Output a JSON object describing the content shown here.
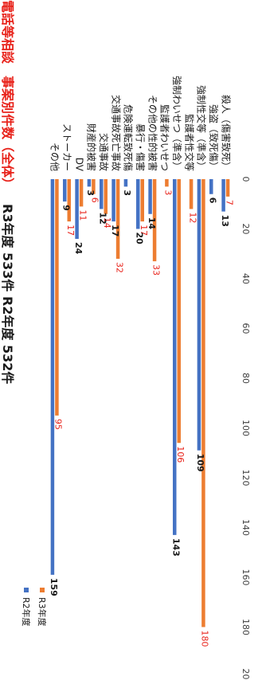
{
  "chart_data": {
    "type": "bar",
    "orientation": "horizontal",
    "title_parts": [
      {
        "text": "電話等相談",
        "color": "#e8231b"
      },
      {
        "text": "事案別件数（全体）",
        "color": "#e8231b"
      },
      {
        "text": "R3年度 533件  R2年度 532件",
        "color": "#1a1a1a"
      }
    ],
    "categories": [
      "殺人（傷害致死）",
      "強盗（致死傷）",
      "強制性交等（準含）",
      "監護者性交等",
      "強制わいせつ（準含）",
      "監護者わいせつ",
      "その他の性的被害",
      "暴行・傷害",
      "危険運転致死傷",
      "交通事故死亡事故",
      "交通事故",
      "財産的被害",
      "DV",
      "ストーカー",
      "その他"
    ],
    "series": [
      {
        "name": "R3年度",
        "color": "#ed7d31",
        "label_color": "#e8231b",
        "values": [
          7,
          0,
          180,
          12,
          106,
          3,
          33,
          17,
          0,
          32,
          14,
          6,
          11,
          17,
          95
        ],
        "labels": [
          "7",
          "",
          "180",
          "12",
          "106",
          "3",
          "33",
          "17",
          "",
          "32",
          "14",
          "6",
          "11",
          "17",
          "95"
        ]
      },
      {
        "name": "R2年度",
        "color": "#4472c4",
        "label_color": "#1a1a1a",
        "values": [
          13,
          6,
          109,
          0,
          143,
          0,
          14,
          20,
          3,
          17,
          12,
          3,
          24,
          9,
          159
        ],
        "labels": [
          "13",
          "6",
          "109",
          "",
          "143",
          "",
          "14",
          "20",
          "3",
          "17",
          "12",
          "3",
          "24",
          "9",
          "159"
        ]
      }
    ],
    "xlim": [
      0,
      200
    ],
    "ticks": [
      0,
      20,
      40,
      60,
      80,
      100,
      120,
      140,
      160,
      180,
      200
    ],
    "tick_labels": [
      "0",
      "20",
      "40",
      "60",
      "80",
      "100",
      "120",
      "140",
      "160",
      "180",
      "200"
    ],
    "legend_position": "top-right",
    "grid": false
  }
}
